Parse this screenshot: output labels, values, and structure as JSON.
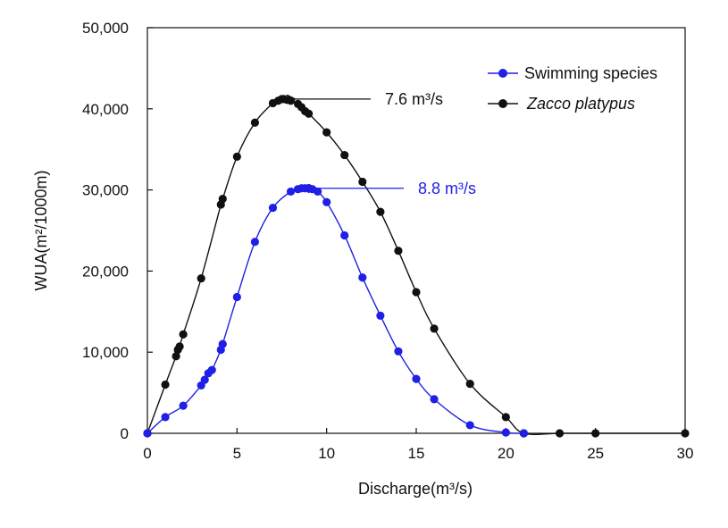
{
  "chart_data": {
    "type": "line",
    "title": "",
    "xlabel": "Discharge(m³/s)",
    "ylabel": "WUA(m²/1000m)",
    "xlim": [
      0,
      30
    ],
    "ylim": [
      0,
      50000
    ],
    "x_ticks": [
      0,
      5,
      10,
      15,
      20,
      25,
      30
    ],
    "x_tick_labels": [
      "0",
      "5",
      "10",
      "15",
      "20",
      "25",
      "30"
    ],
    "y_ticks": [
      0,
      10000,
      20000,
      30000,
      40000,
      50000
    ],
    "y_tick_labels": [
      "0",
      "10,000",
      "20,000",
      "30,000",
      "40,000",
      "50,000"
    ],
    "grid": false,
    "legend_position": "top-right",
    "series": [
      {
        "name": "Swimming species",
        "italic": false,
        "color": "#1f1fe6",
        "x": [
          0,
          1,
          2,
          3,
          3.2,
          3.4,
          3.6,
          4.1,
          4.2,
          5,
          6,
          7,
          8,
          8.4,
          8.6,
          8.8,
          9,
          9.2,
          9.5,
          10,
          11,
          12,
          13,
          14,
          15,
          16,
          18,
          20,
          21
        ],
        "y": [
          0,
          2000,
          3400,
          5900,
          6600,
          7400,
          7800,
          10300,
          11000,
          16800,
          23600,
          27800,
          29800,
          30100,
          30200,
          30200,
          30200,
          30100,
          29800,
          28500,
          24400,
          19200,
          14500,
          10100,
          6700,
          4200,
          1000,
          100,
          0
        ]
      },
      {
        "name": "Zacco platypus",
        "italic": true,
        "color": "#111111",
        "x": [
          0,
          1,
          1.6,
          1.7,
          1.8,
          2,
          3,
          4.1,
          4.2,
          5,
          6,
          7,
          7.3,
          7.5,
          7.6,
          7.8,
          8,
          8.4,
          8.6,
          8.8,
          9,
          10,
          11,
          12,
          13,
          14,
          15,
          16,
          18,
          20,
          21,
          23,
          25,
          30
        ],
        "y": [
          0,
          6000,
          9500,
          10300,
          10700,
          12200,
          19100,
          28200,
          28900,
          34100,
          38300,
          40700,
          41000,
          41200,
          41200,
          41100,
          41000,
          40600,
          40200,
          39700,
          39400,
          37100,
          34300,
          31000,
          27300,
          22500,
          17400,
          12900,
          6100,
          2000,
          0,
          0,
          0,
          0
        ]
      }
    ],
    "annotations": [
      {
        "label": "7.6 m³/s",
        "series": "Zacco platypus",
        "x": 7.6,
        "y": 41200,
        "color": "#111111"
      },
      {
        "label": "8.8 m³/s",
        "series": "Swimming species",
        "x": 8.8,
        "y": 30200,
        "color": "#1f1fe6"
      }
    ]
  }
}
